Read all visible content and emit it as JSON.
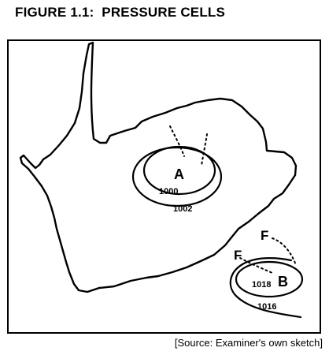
{
  "figure": {
    "title": "FIGURE 1.1:  PRESSURE CELLS",
    "source": "[Source: Examiner's own sketch]"
  },
  "map": {
    "pressure_cells": [
      {
        "letter": "A",
        "isobars": [
          "1000",
          "1002"
        ]
      },
      {
        "letter": "B",
        "isobars": [
          "1018",
          "1016"
        ]
      }
    ],
    "front_labels": [
      "F",
      "F"
    ]
  }
}
